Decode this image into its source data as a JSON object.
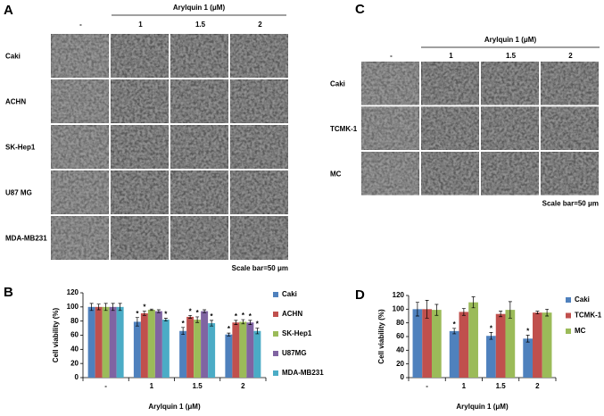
{
  "panel_a": {
    "label": "A",
    "header": "Arylquin 1  (μM)",
    "columns": [
      "-",
      "1",
      "1.5",
      "2"
    ],
    "rows": [
      "Caki",
      "ACHN",
      "SK-Hep1",
      "U87 MG",
      "MDA-MB231"
    ],
    "scale_bar": "Scale bar=50 μm"
  },
  "panel_c": {
    "label": "C",
    "header": "Arylquin 1  (μM)",
    "columns": [
      "-",
      "1",
      "1.5",
      "2"
    ],
    "rows": [
      "Caki",
      "TCMK-1",
      "MC"
    ],
    "scale_bar": "Scale bar=50 μm"
  },
  "chart_data": [
    {
      "type": "bar",
      "panel": "B",
      "ylabel": "Cell viability (%)",
      "xlabel": "Arylquin 1  (μM)",
      "categories": [
        "-",
        "1",
        "1.5",
        "2"
      ],
      "ylim": [
        0,
        120
      ],
      "yticks": [
        0,
        20,
        40,
        60,
        80,
        100,
        120
      ],
      "series": [
        {
          "name": "Caki",
          "color": "#4f81bd",
          "values": [
            100,
            79,
            66,
            61
          ],
          "errors": [
            5,
            6,
            5,
            2
          ],
          "marks": [
            null,
            "*",
            "*",
            "*"
          ]
        },
        {
          "name": "ACHN",
          "color": "#c0504d",
          "values": [
            100,
            91,
            86,
            78
          ],
          "errors": [
            4,
            3,
            2,
            3
          ],
          "marks": [
            null,
            "*",
            "*",
            "*"
          ]
        },
        {
          "name": "SK-Hep1",
          "color": "#9bbb59",
          "values": [
            100,
            96,
            82,
            79
          ],
          "errors": [
            5,
            1,
            4,
            3
          ],
          "marks": [
            null,
            null,
            "*",
            "*"
          ]
        },
        {
          "name": "U87MG",
          "color": "#8064a2",
          "values": [
            100,
            94,
            94,
            78
          ],
          "errors": [
            5,
            2,
            2,
            3
          ],
          "marks": [
            null,
            null,
            null,
            "*"
          ]
        },
        {
          "name": "MDA-MB231",
          "color": "#4bacc6",
          "values": [
            100,
            82,
            77,
            66
          ],
          "errors": [
            5,
            2,
            4,
            4
          ],
          "marks": [
            null,
            "*",
            "*",
            "*"
          ]
        }
      ]
    },
    {
      "type": "bar",
      "panel": "D",
      "ylabel": "Cell viability (%)",
      "xlabel": "Arylquin 1  (μM)",
      "categories": [
        "-",
        "1",
        "1.5",
        "2"
      ],
      "ylim": [
        0,
        120
      ],
      "yticks": [
        0,
        20,
        40,
        60,
        80,
        100,
        120
      ],
      "series": [
        {
          "name": "Caki",
          "color": "#4f81bd",
          "values": [
            100,
            68,
            61,
            57
          ],
          "errors": [
            10,
            4,
            5,
            5
          ],
          "marks": [
            null,
            "*",
            "*",
            "*"
          ]
        },
        {
          "name": "TCMK-1",
          "color": "#c0504d",
          "values": [
            100,
            96,
            93,
            95
          ],
          "errors": [
            13,
            5,
            4,
            2
          ],
          "marks": [
            null,
            null,
            null,
            null
          ]
        },
        {
          "name": "MC",
          "color": "#9bbb59",
          "values": [
            99,
            110,
            99,
            95
          ],
          "errors": [
            8,
            8,
            12,
            5
          ],
          "marks": [
            null,
            null,
            null,
            null
          ]
        }
      ]
    }
  ]
}
